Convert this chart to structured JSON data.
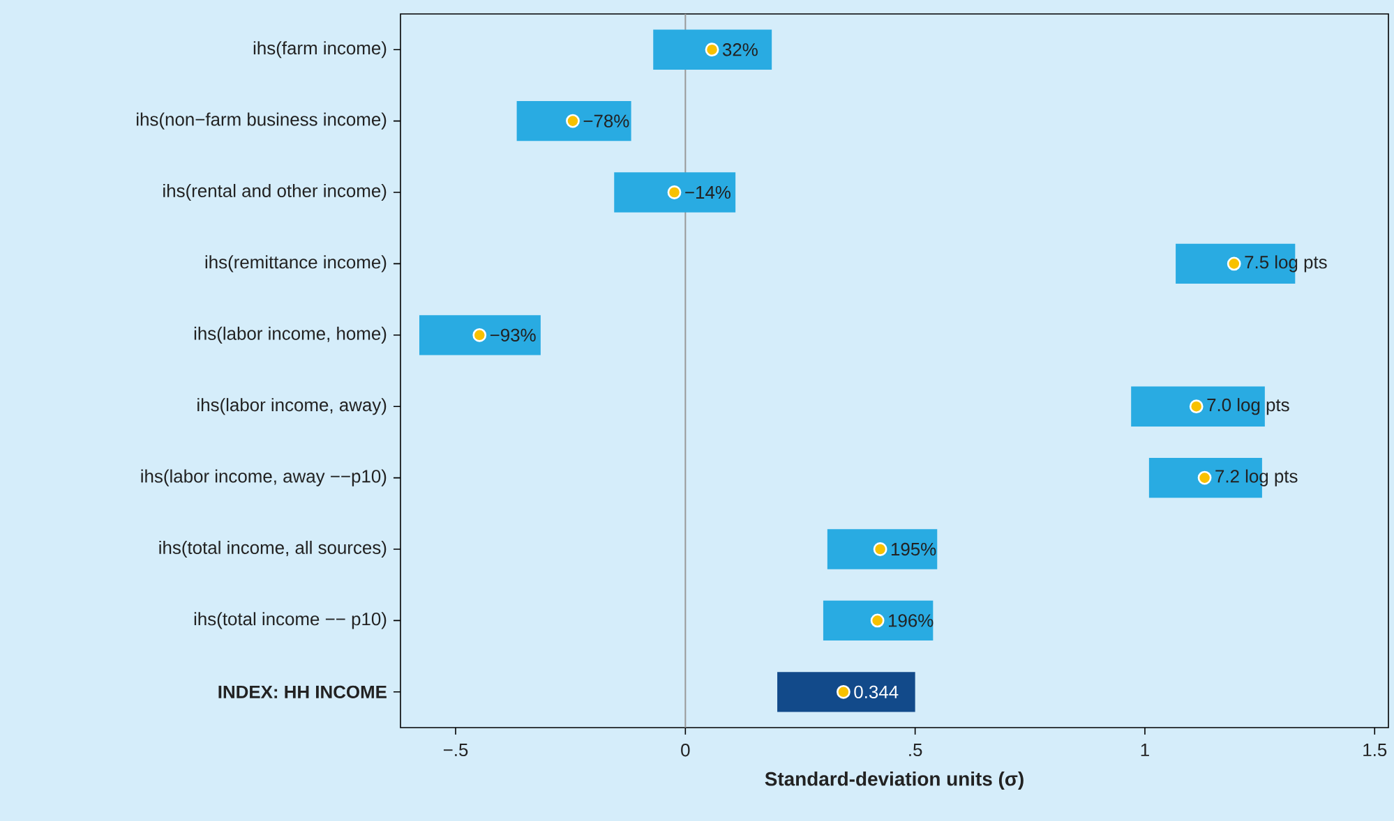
{
  "chart_data": {
    "type": "bar",
    "orientation": "horizontal",
    "categories": [
      "ihs(farm income)",
      "ihs(non−farm business income)",
      "ihs(rental and other income)",
      "ihs(remittance income)",
      "ihs(labor income, home)",
      "ihs(labor income, away)",
      "ihs(labor income, away −−p10)",
      "ihs(total income, all sources)",
      "ihs(total income −− p10)",
      "**INDEX: HH INCOME**"
    ],
    "xlabel": "Standard-deviation units (σ)",
    "xlim": [
      -0.62,
      1.53
    ],
    "xticks": [
      {
        "value": -0.5,
        "label": "−.5"
      },
      0,
      {
        "value": 0.5,
        "label": ".5"
      },
      1,
      1.5
    ],
    "ref_lines": [
      {
        "axis": "x",
        "value": 0,
        "color": "#999999"
      }
    ],
    "series": [
      {
        "type": "bar",
        "base": [
          -0.07,
          -0.367,
          -0.155,
          1.067,
          -0.579,
          0.97,
          1.009,
          0.309,
          0.3,
          0.2
        ],
        "values": [
          0.258,
          0.249,
          0.264,
          0.26,
          0.264,
          0.291,
          0.246,
          0.239,
          0.239,
          0.3
        ],
        "colors": [
          "#29abe2",
          "#29abe2",
          "#29abe2",
          "#29abe2",
          "#29abe2",
          "#29abe2",
          "#29abe2",
          "#29abe2",
          "#29abe2",
          "#124a8a"
        ]
      },
      {
        "type": "scatter",
        "marker": "circle",
        "color": "#f8c100",
        "values": [
          0.058,
          -0.245,
          -0.024,
          1.194,
          -0.448,
          1.112,
          1.13,
          0.424,
          0.418,
          0.344
        ]
      }
    ],
    "annotations": [
      {
        "text": "32%",
        "x": 0.058,
        "y": "ihs(farm income)"
      },
      {
        "text": "−78%",
        "x": -0.245,
        "y": "ihs(non−farm business income)"
      },
      {
        "text": "−14%",
        "x": -0.024,
        "y": "ihs(rental and other income)"
      },
      {
        "text": "7.5 log pts",
        "x": 1.194,
        "y": "ihs(remittance income)"
      },
      {
        "text": "−93%",
        "x": -0.448,
        "y": "ihs(labor income, home)"
      },
      {
        "text": "7.0 log pts",
        "x": 1.112,
        "y": "ihs(labor income, away)"
      },
      {
        "text": "7.2 log pts",
        "x": 1.13,
        "y": "ihs(labor income, away −−p10)"
      },
      {
        "text": "195%",
        "x": 0.424,
        "y": "ihs(total income, all sources)"
      },
      {
        "text": "196%",
        "x": 0.418,
        "y": "ihs(total income −− p10)"
      },
      {
        "text": "0.344",
        "x": 0.344,
        "y": "**INDEX: HH INCOME**"
      }
    ]
  }
}
